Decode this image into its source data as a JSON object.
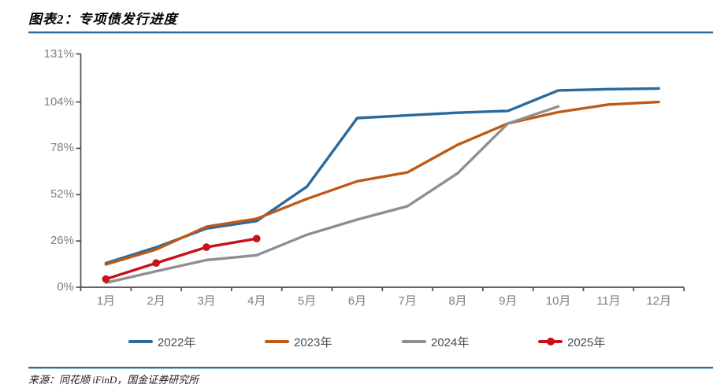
{
  "header": {
    "title": "图表2：专项债发行进度"
  },
  "footer": {
    "source": "来源：同花顺 iFinD，国金证券研究所"
  },
  "colors": {
    "rule_blue": "#2e6e9e",
    "axis": "#4d4d4d",
    "tick_label": "#808080",
    "legend_text": "#4d4d4d"
  },
  "chart_data": {
    "type": "line",
    "title": "专项债发行进度",
    "xlabel": "",
    "ylabel": "",
    "categories": [
      "1月",
      "2月",
      "3月",
      "4月",
      "5月",
      "6月",
      "7月",
      "8月",
      "9月",
      "10月",
      "11月",
      "12月"
    ],
    "ylim": [
      0,
      131
    ],
    "grid": false,
    "legend_position": "bottom",
    "y_ticks": {
      "values": [
        0,
        26,
        52,
        78,
        104,
        131
      ],
      "labels": [
        "0%",
        "26%",
        "52%",
        "78%",
        "104%",
        "131%"
      ]
    },
    "series": [
      {
        "name": "2022年",
        "color": "#2a6a9c",
        "marker": "none",
        "values": [
          13.5,
          22.4,
          33.0,
          37.2,
          56.5,
          95.0,
          96.5,
          98.0,
          99.0,
          110.5,
          111.2,
          111.6
        ]
      },
      {
        "name": "2023年",
        "color": "#bd5a16",
        "marker": "none",
        "values": [
          12.8,
          21.2,
          34.0,
          38.5,
          49.6,
          59.5,
          64.5,
          80.0,
          92.0,
          98.3,
          102.6,
          104.0
        ]
      },
      {
        "name": "2024年",
        "color": "#8f8f8f",
        "marker": "none",
        "values": [
          2.5,
          9.0,
          15.3,
          18.0,
          29.5,
          38.0,
          45.5,
          64.0,
          92.0,
          101.5,
          null,
          null
        ]
      },
      {
        "name": "2025年",
        "color": "#c9111a",
        "marker": "circle",
        "values": [
          4.6,
          13.6,
          22.5,
          27.3,
          null,
          null,
          null,
          null,
          null,
          null,
          null,
          null
        ]
      }
    ]
  }
}
